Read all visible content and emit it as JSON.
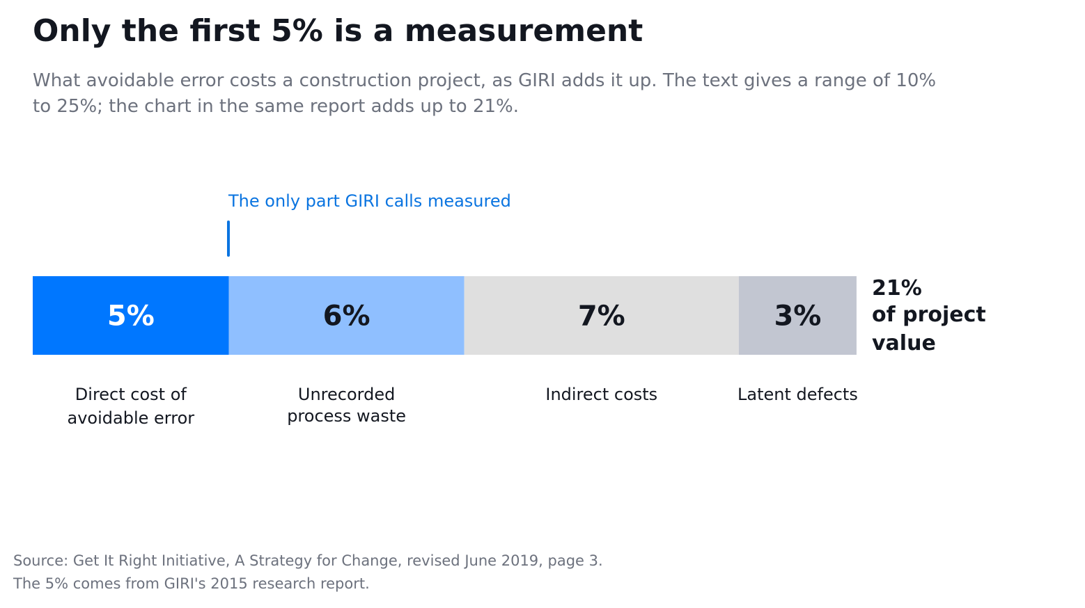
{
  "title": "Only the first 5% is a measurement",
  "subtitle": "What avoidable error costs a construction project, as GIRI adds it up. The text gives a range of 10% to 25%; the chart in the same report adds up to 21%.",
  "annotation": "The only part GIRI calls measured",
  "total": {
    "value": "21%",
    "caption": "of project value"
  },
  "source": "Source: Get It Right Initiative, A Strategy for Change, revised June 2019, page 3. The 5% comes from GIRI's 2015 research report.",
  "colors": {
    "measured": "#0077ff",
    "process_waste": "#8fbfff",
    "indirect": "#dfdfdf",
    "latent": "#c2c6d1",
    "text_dark": "#131720",
    "text_light": "#ffffff",
    "annotation": "#0a74e0"
  },
  "chart_data": {
    "type": "bar",
    "orientation": "horizontal-stacked",
    "unit": "%",
    "total": 21,
    "segments": [
      {
        "label": "Direct cost of avoidable error",
        "value": 5,
        "value_label": "5%",
        "color": "#0077ff",
        "text_color": "#ffffff",
        "measured": true
      },
      {
        "label": "Unrecorded process waste",
        "value": 6,
        "value_label": "6%",
        "color": "#8fbfff",
        "text_color": "#131720",
        "measured": false
      },
      {
        "label": "Indirect costs",
        "value": 7,
        "value_label": "7%",
        "color": "#dfdfdf",
        "text_color": "#131720",
        "measured": false
      },
      {
        "label": "Latent defects",
        "value": 3,
        "value_label": "3%",
        "color": "#c2c6d1",
        "text_color": "#131720",
        "measured": false
      }
    ]
  }
}
